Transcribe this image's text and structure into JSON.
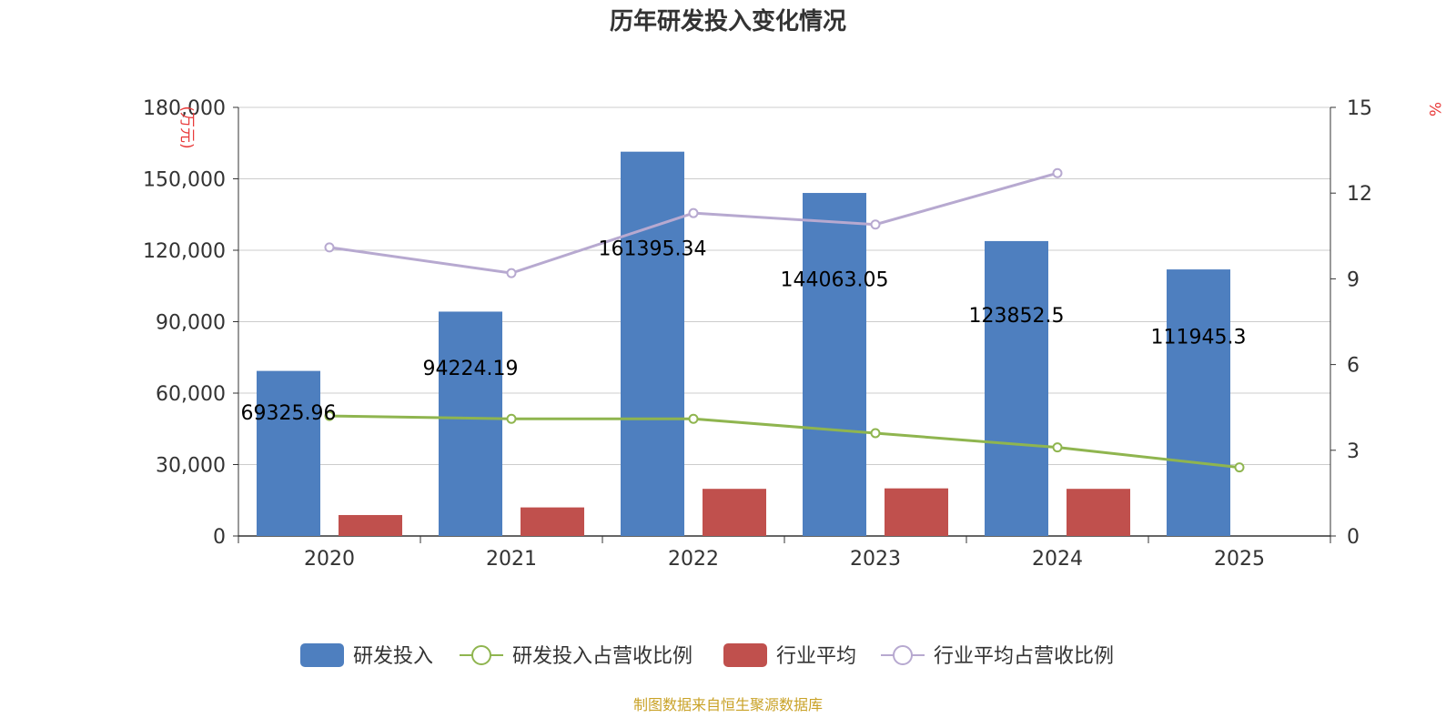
{
  "chart_data": {
    "type": "bar",
    "title": "历年研发投入变化情况",
    "categories": [
      "2020",
      "2021",
      "2022",
      "2023",
      "2024",
      "2025"
    ],
    "y_left": {
      "unit": "(万元)",
      "ylim": [
        0,
        180000
      ],
      "ticks": [
        "0",
        "30,000",
        "60,000",
        "90,000",
        "120,000",
        "150,000",
        "180,000"
      ],
      "tick_values": [
        0,
        30000,
        60000,
        90000,
        120000,
        150000,
        180000
      ]
    },
    "y_right": {
      "unit": "%",
      "ylim": [
        0,
        15
      ],
      "ticks": [
        "0",
        "3",
        "6",
        "9",
        "12",
        "15"
      ],
      "tick_values": [
        0,
        3,
        6,
        9,
        12,
        15
      ]
    },
    "series": [
      {
        "name": "研发投入",
        "type": "bar",
        "axis": "left",
        "color": "#4e7fbf",
        "values": [
          69325.96,
          94224.19,
          161395.34,
          144063.05,
          123852.5,
          111945.3
        ],
        "labels": [
          "69325.96",
          "94224.19",
          "161395.34",
          "144063.05",
          "123852.5",
          "111945.3"
        ]
      },
      {
        "name": "研发投入占营收比例",
        "type": "line",
        "axis": "right",
        "color": "#8fb54f",
        "values": [
          4.2,
          4.1,
          4.1,
          3.6,
          3.1,
          2.4
        ]
      },
      {
        "name": "行业平均",
        "type": "bar",
        "axis": "left",
        "color": "#c0504d",
        "values": [
          8800,
          12000,
          19800,
          20000,
          19800,
          null
        ]
      },
      {
        "name": "行业平均占营收比例",
        "type": "line",
        "axis": "right",
        "color": "#b7a9d0",
        "values": [
          10.1,
          9.2,
          11.3,
          10.9,
          12.7,
          null
        ]
      }
    ],
    "grid": true,
    "legend_position": "bottom"
  },
  "source_text": "制图数据来自恒生聚源数据库"
}
